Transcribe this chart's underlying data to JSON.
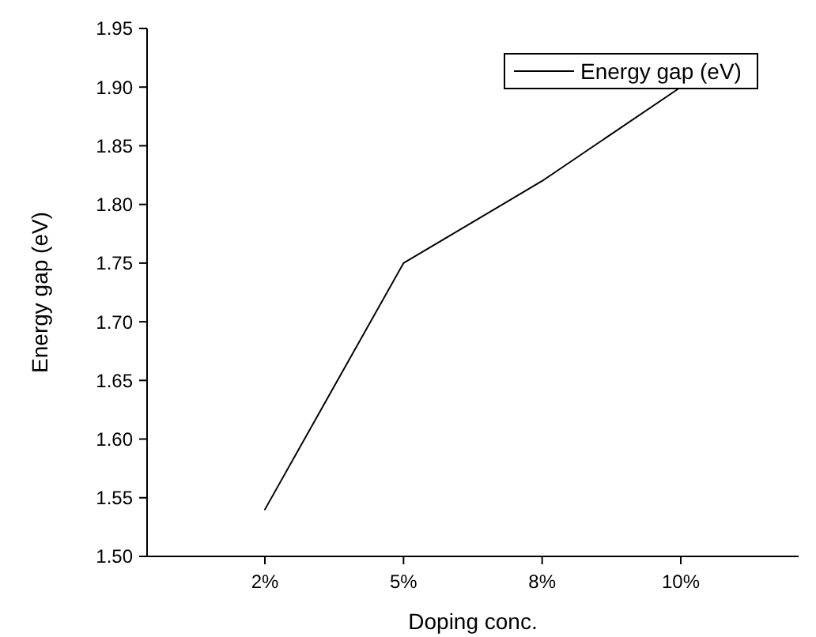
{
  "chart_data": {
    "type": "line",
    "xlabel": "Doping conc.",
    "ylabel": "Energy gap (eV)",
    "categories": [
      "2%",
      "5%",
      "8%",
      "10%"
    ],
    "series": [
      {
        "name": "Energy gap (eV)",
        "color": "#000000",
        "values": [
          1.54,
          1.75,
          1.82,
          1.9
        ]
      }
    ],
    "ylim": [
      1.5,
      1.95
    ],
    "yticks": [
      {
        "value": 1.5,
        "label": "1.50"
      },
      {
        "value": 1.55,
        "label": "1.55"
      },
      {
        "value": 1.6,
        "label": "1.60"
      },
      {
        "value": 1.65,
        "label": "1.65"
      },
      {
        "value": 1.7,
        "label": "1.70"
      },
      {
        "value": 1.75,
        "label": "1.75"
      },
      {
        "value": 1.8,
        "label": "1.80"
      },
      {
        "value": 1.85,
        "label": "1.85"
      },
      {
        "value": 1.9,
        "label": "1.90"
      },
      {
        "value": 1.95,
        "label": "1.95"
      }
    ],
    "legend": "top right",
    "grid": false,
    "marker": "none",
    "line_style": "solid"
  }
}
